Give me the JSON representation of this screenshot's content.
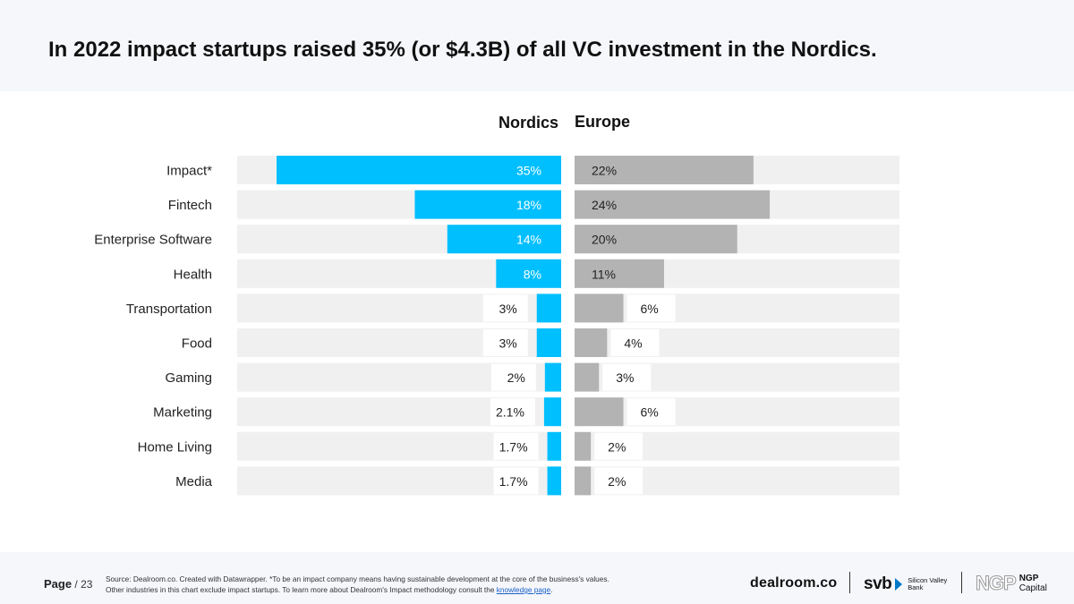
{
  "title": "In 2022 impact startups raised 35% (or $4.3B) of all VC investment in the Nordics.",
  "chart_data": {
    "type": "bar",
    "orientation": "horizontal",
    "layout": "back-to-back",
    "categories": [
      "Impact*",
      "Fintech",
      "Enterprise Software",
      "Health",
      "Transportation",
      "Food",
      "Gaming",
      "Marketing",
      "Home Living",
      "Media"
    ],
    "series": [
      {
        "name": "Nordics",
        "color": "#00bfff",
        "values": [
          35,
          18,
          14,
          8,
          3,
          3,
          2,
          2.1,
          1.7,
          1.7
        ],
        "labels": [
          "35%",
          "18%",
          "14%",
          "8%",
          "3%",
          "3%",
          "2%",
          "2.1%",
          "1.7%",
          "1.7%"
        ]
      },
      {
        "name": "Europe",
        "color": "#b3b3b3",
        "values": [
          22,
          24,
          20,
          11,
          6,
          4,
          3,
          6,
          2,
          2
        ],
        "labels": [
          "22%",
          "24%",
          "20%",
          "11%",
          "6%",
          "4%",
          "3%",
          "6%",
          "2%",
          "2%"
        ]
      }
    ],
    "xlim": [
      0,
      40
    ],
    "background_track_color": "#f0f0f0"
  },
  "footer": {
    "page_label": "Page",
    "page_sep": " / ",
    "page_number": "23",
    "source_line1": "Source: Dealroom.co. Created with Datawrapper. *To be an impact company means having sustainable development at the core of the business's values.",
    "source_line2": "Other industries in this chart  exclude impact startups. To learn more about Dealroom's Impact methodology consult the ",
    "source_link": "knowledge page",
    "source_end": "."
  },
  "logos": {
    "dealroom": "dealroom.co",
    "svb": "svb",
    "svb_line1": "Silicon Valley",
    "svb_line2": "Bank",
    "ngp_mark": "NGP",
    "ngp_line1": "NGP",
    "ngp_line2": "Capital"
  }
}
